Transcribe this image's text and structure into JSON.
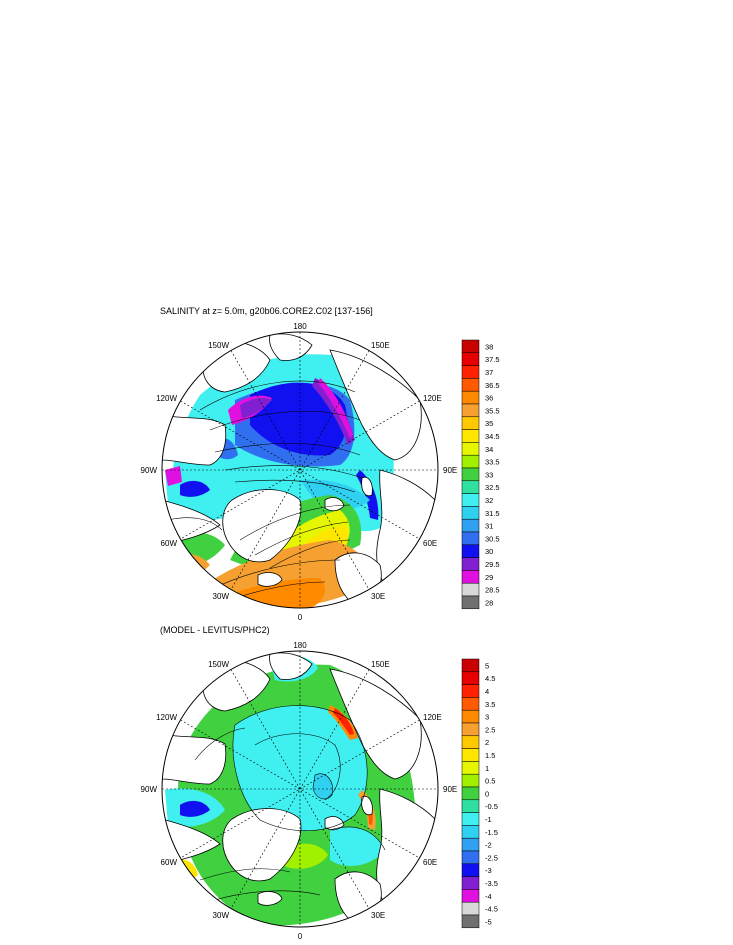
{
  "chart_data": [
    {
      "type": "heatmap",
      "title": "SALINITY at z=   5.0m, g20b06.CORE2.C02 [137-156]",
      "projection": "north polar stereographic",
      "meridian_labels": [
        "180",
        "150E",
        "120E",
        "90E",
        "60E",
        "30E",
        "0",
        "30W",
        "60W",
        "90W",
        "120W",
        "150W"
      ],
      "colorbar": {
        "levels": [
          "38",
          "37.5",
          "37",
          "36.5",
          "36",
          "35.5",
          "35",
          "34.5",
          "34",
          "33.5",
          "33",
          "32.5",
          "32",
          "31.5",
          "31",
          "30.5",
          "30",
          "29.5",
          "29",
          "28.5",
          "28"
        ],
        "colors": [
          "#c80000",
          "#e60000",
          "#ff2200",
          "#ff5a00",
          "#ff8a00",
          "#f5a030",
          "#ffc800",
          "#ffe600",
          "#e6f500",
          "#a0f000",
          "#40d040",
          "#30e0a0",
          "#40f0f0",
          "#30d0f0",
          "#30a0f0",
          "#3070f0",
          "#1010f0",
          "#8020d0",
          "#e010e0",
          "#d8d8d8",
          "#707070"
        ]
      }
    },
    {
      "type": "heatmap",
      "title": "(MODEL - LEVITUS/PHC2)",
      "projection": "north polar stereographic",
      "meridian_labels": [
        "180",
        "150E",
        "120E",
        "90E",
        "60E",
        "30E",
        "0",
        "30W",
        "60W",
        "90W",
        "120W",
        "150W"
      ],
      "colorbar": {
        "levels": [
          "5",
          "4.5",
          "4",
          "3.5",
          "3",
          "2.5",
          "2",
          "1.5",
          "1",
          "0.5",
          "0",
          "-0.5",
          "-1",
          "-1.5",
          "-2",
          "-2.5",
          "-3",
          "-3.5",
          "-4",
          "-4.5",
          "-5"
        ],
        "colors": [
          "#c80000",
          "#e60000",
          "#ff2200",
          "#ff5a00",
          "#ff8a00",
          "#f5a030",
          "#ffc800",
          "#ffe600",
          "#e6f500",
          "#a0f000",
          "#40d040",
          "#30e0a0",
          "#40f0f0",
          "#30d0f0",
          "#30a0f0",
          "#3070f0",
          "#1010f0",
          "#8020d0",
          "#e010e0",
          "#d8d8d8",
          "#707070"
        ]
      }
    }
  ]
}
